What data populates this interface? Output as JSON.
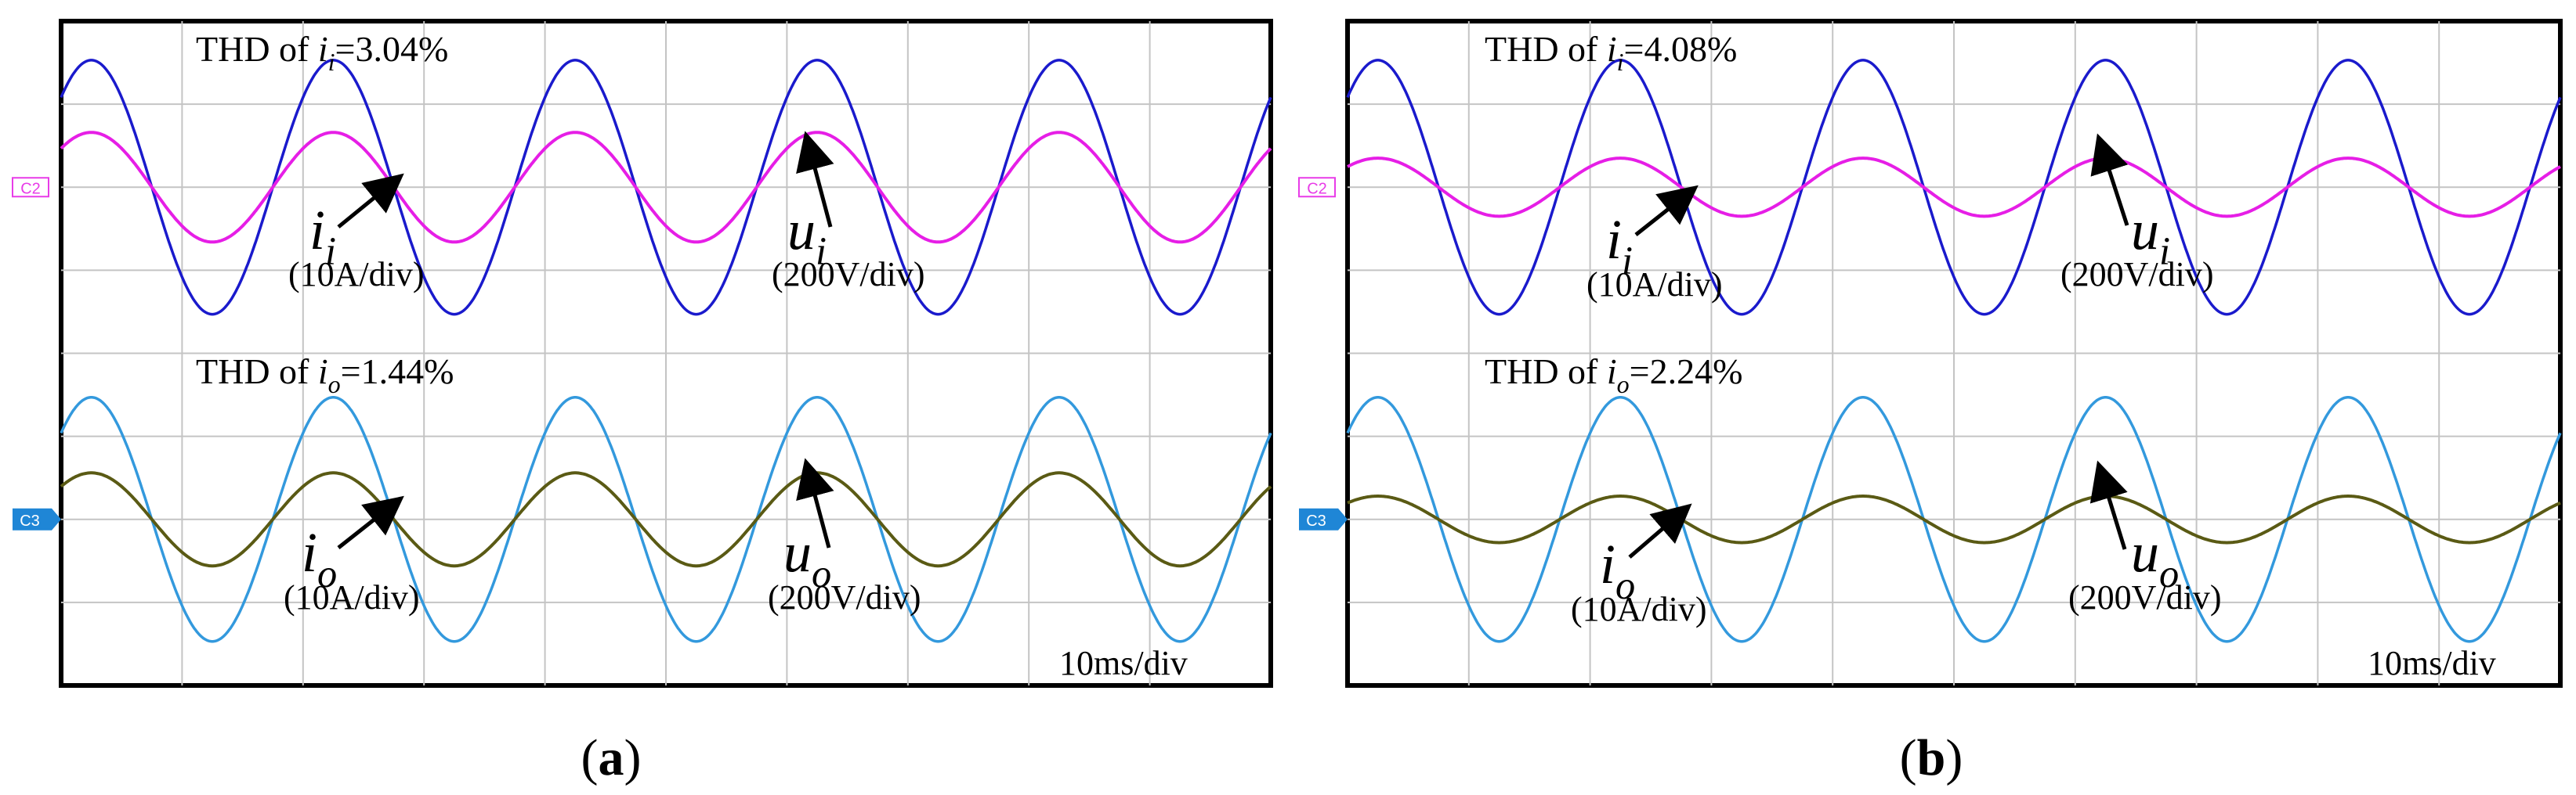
{
  "chart_data": [
    {
      "type": "line",
      "panel_label": "a",
      "timebase": "10ms/div",
      "x_unit": "ms",
      "xlim": [
        0,
        100
      ],
      "grid": true,
      "colors": {
        "ui": "#1a1acc",
        "ii": "#e61ee6",
        "uo": "#3399dd",
        "io": "#5a5a14",
        "ch2_marker": "#e83ce8",
        "ch3_marker": "#1f86d6"
      },
      "annotations": {
        "thd_input": {
          "pre": "THD of ",
          "sym": "i",
          "sub": "i",
          "post": "=3.04%"
        },
        "thd_output": {
          "pre": "THD of ",
          "sym": "i",
          "sub": "o",
          "post": "=1.44%"
        },
        "ii_label": {
          "sym": "i",
          "sub": "i",
          "scale": "(10A/div)"
        },
        "ui_label": {
          "sym": "u",
          "sub": "i",
          "scale": "(200V/div)"
        },
        "io_label": {
          "sym": "i",
          "sub": "o",
          "scale": "(10A/div)"
        },
        "uo_label": {
          "sym": "u",
          "sub": "o",
          "scale": "(200V/div)"
        }
      },
      "channel_markers": [
        "C2",
        "C3"
      ],
      "series": [
        {
          "key": "ui",
          "frequency_hz": 50,
          "amplitude_div": 1.53,
          "offset_div": 0
        },
        {
          "key": "ii",
          "frequency_hz": 50,
          "amplitude_div": 0.66,
          "offset_div": 0
        },
        {
          "key": "uo",
          "frequency_hz": 50,
          "amplitude_div": 1.47,
          "offset_div": -4
        },
        {
          "key": "io",
          "frequency_hz": 50,
          "amplitude_div": 0.56,
          "offset_div": -4
        }
      ]
    },
    {
      "type": "line",
      "panel_label": "b",
      "timebase": "10ms/div",
      "x_unit": "ms",
      "xlim": [
        0,
        100
      ],
      "grid": true,
      "colors": {
        "ui": "#1a1acc",
        "ii": "#e61ee6",
        "uo": "#3399dd",
        "io": "#5a5a14",
        "ch2_marker": "#e83ce8",
        "ch3_marker": "#1f86d6"
      },
      "annotations": {
        "thd_input": {
          "pre": "THD of ",
          "sym": "i",
          "sub": "i",
          "post": "=4.08%"
        },
        "thd_output": {
          "pre": "THD of ",
          "sym": "i",
          "sub": "o",
          "post": "=2.24%"
        },
        "ii_label": {
          "sym": "i",
          "sub": "i",
          "scale": "(10A/div)"
        },
        "ui_label": {
          "sym": "u",
          "sub": "i",
          "scale": "(200V/div)"
        },
        "io_label": {
          "sym": "i",
          "sub": "o",
          "scale": "(10A/div)"
        },
        "uo_label": {
          "sym": "u",
          "sub": "o",
          "scale": "(200V/div)"
        }
      },
      "channel_markers": [
        "C2",
        "C3"
      ],
      "series": [
        {
          "key": "ui",
          "frequency_hz": 50,
          "amplitude_div": 1.53,
          "offset_div": 0
        },
        {
          "key": "ii",
          "frequency_hz": 50,
          "amplitude_div": 0.35,
          "offset_div": 0
        },
        {
          "key": "uo",
          "frequency_hz": 50,
          "amplitude_div": 1.47,
          "offset_div": -4
        },
        {
          "key": "io",
          "frequency_hz": 50,
          "amplitude_div": 0.28,
          "offset_div": -4
        }
      ]
    }
  ]
}
